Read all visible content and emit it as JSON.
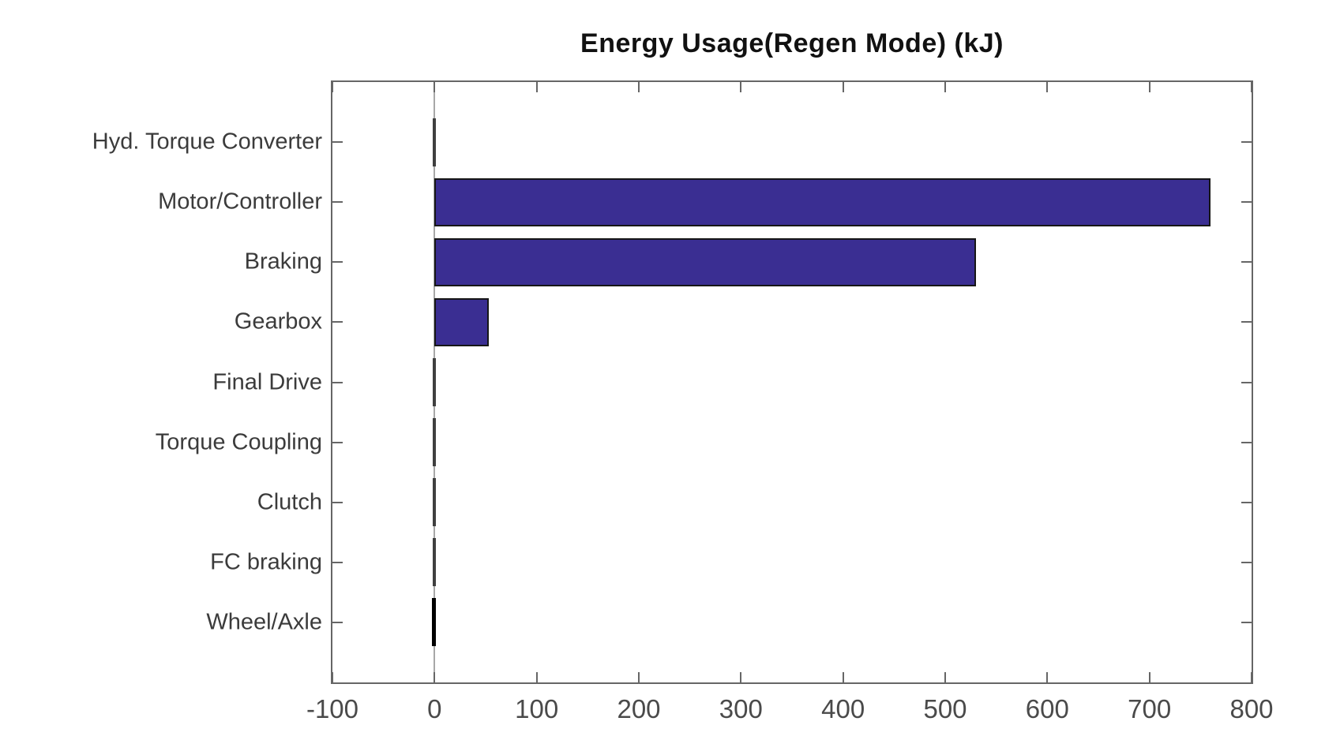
{
  "chart_data": {
    "type": "bar",
    "orientation": "horizontal",
    "title": "Energy Usage(Regen Mode) (kJ)",
    "categories": [
      "Hyd. Torque Converter",
      "Motor/Controller",
      "Braking",
      "Gearbox",
      "Final Drive",
      "Torque Coupling",
      "Clutch",
      "FC braking",
      "Wheel/Axle"
    ],
    "values": [
      0,
      760,
      530,
      53,
      0,
      0,
      0,
      0,
      -2
    ],
    "xlabel": "",
    "ylabel": "",
    "xlim": [
      -100,
      800
    ],
    "xticks": [
      -100,
      0,
      100,
      200,
      300,
      400,
      500,
      600,
      700,
      800
    ],
    "grid": false,
    "legend": "none",
    "zero_line": true,
    "bar_rel_height": 0.8,
    "colors": {
      "bar_fill": "#3a2e92",
      "bar_edge": "#161616",
      "axis": "#666666",
      "zero_line": "#a8a8a8",
      "title_text": "#111111",
      "tick_text": "#4a4a4a",
      "background": "#ffffff"
    }
  }
}
